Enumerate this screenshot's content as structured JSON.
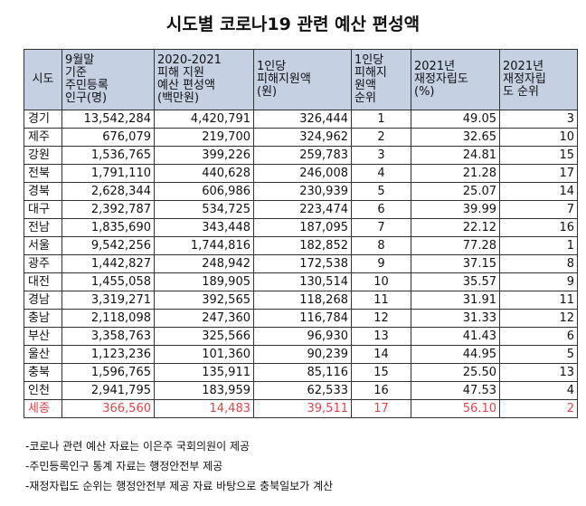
{
  "title": "시도별 코로나19 관련 예산 편성액",
  "table": {
    "headers": [
      "시도",
      "9월말\n기준\n주민등록\n인구(명)",
      "2020-2021\n피해 지원\n예산 편성액\n(백만원)",
      "1인당\n피해지원액\n(원)",
      "1인당\n피해지\n원액\n순위",
      "2021년\n재정자립도\n(%)",
      "2021년\n재정자립\n도 순위"
    ],
    "rows": [
      {
        "region": "경기",
        "population": "13,542,284",
        "budget": "4,420,791",
        "per_capita": "326,444",
        "rank": "1",
        "fiscal_ratio": "49.05",
        "fiscal_rank": "3"
      },
      {
        "region": "제주",
        "population": "676,079",
        "budget": "219,700",
        "per_capita": "324,962",
        "rank": "2",
        "fiscal_ratio": "32.65",
        "fiscal_rank": "10"
      },
      {
        "region": "강원",
        "population": "1,536,765",
        "budget": "399,226",
        "per_capita": "259,783",
        "rank": "3",
        "fiscal_ratio": "24.81",
        "fiscal_rank": "15"
      },
      {
        "region": "전북",
        "population": "1,791,110",
        "budget": "440,628",
        "per_capita": "246,008",
        "rank": "4",
        "fiscal_ratio": "21.28",
        "fiscal_rank": "17"
      },
      {
        "region": "경북",
        "population": "2,628,344",
        "budget": "606,986",
        "per_capita": "230,939",
        "rank": "5",
        "fiscal_ratio": "25.07",
        "fiscal_rank": "14"
      },
      {
        "region": "대구",
        "population": "2,392,787",
        "budget": "534,725",
        "per_capita": "223,474",
        "rank": "6",
        "fiscal_ratio": "39.99",
        "fiscal_rank": "7"
      },
      {
        "region": "전남",
        "population": "1,835,690",
        "budget": "343,448",
        "per_capita": "187,095",
        "rank": "7",
        "fiscal_ratio": "22.12",
        "fiscal_rank": "16"
      },
      {
        "region": "서울",
        "population": "9,542,256",
        "budget": "1,744,816",
        "per_capita": "182,852",
        "rank": "8",
        "fiscal_ratio": "77.28",
        "fiscal_rank": "1"
      },
      {
        "region": "광주",
        "population": "1,442,827",
        "budget": "248,942",
        "per_capita": "172,538",
        "rank": "9",
        "fiscal_ratio": "37.15",
        "fiscal_rank": "8"
      },
      {
        "region": "대전",
        "population": "1,455,058",
        "budget": "189,905",
        "per_capita": "130,514",
        "rank": "10",
        "fiscal_ratio": "35.57",
        "fiscal_rank": "9"
      },
      {
        "region": "경남",
        "population": "3,319,271",
        "budget": "392,565",
        "per_capita": "118,268",
        "rank": "11",
        "fiscal_ratio": "31.91",
        "fiscal_rank": "11"
      },
      {
        "region": "충남",
        "population": "2,118,098",
        "budget": "247,360",
        "per_capita": "116,784",
        "rank": "12",
        "fiscal_ratio": "31.33",
        "fiscal_rank": "12"
      },
      {
        "region": "부산",
        "population": "3,358,763",
        "budget": "325,566",
        "per_capita": "96,930",
        "rank": "13",
        "fiscal_ratio": "41.43",
        "fiscal_rank": "6"
      },
      {
        "region": "울산",
        "population": "1,123,236",
        "budget": "101,360",
        "per_capita": "90,239",
        "rank": "14",
        "fiscal_ratio": "44.95",
        "fiscal_rank": "5"
      },
      {
        "region": "충북",
        "population": "1,596,765",
        "budget": "135,911",
        "per_capita": "85,116",
        "rank": "15",
        "fiscal_ratio": "25.50",
        "fiscal_rank": "13"
      },
      {
        "region": "인천",
        "population": "2,941,795",
        "budget": "183,959",
        "per_capita": "62,533",
        "rank": "16",
        "fiscal_ratio": "47.53",
        "fiscal_rank": "4"
      },
      {
        "region": "세종",
        "population": "366,560",
        "budget": "14,483",
        "per_capita": "39,511",
        "rank": "17",
        "fiscal_ratio": "56.10",
        "fiscal_rank": "2",
        "highlight": true
      }
    ]
  },
  "notes": [
    "-코로나 관련 예산 자료는 이은주 국회의원이 제공",
    "-주민등록인구 통계 자료는 행정안전부 제공",
    "-재정자립도 순위는 행정안전부 제공 자료 바탕으로 충북일보가 계산"
  ],
  "colors": {
    "header_bg": "#c5d0e3",
    "highlight_text": "#e0454a",
    "border": "#333333"
  }
}
